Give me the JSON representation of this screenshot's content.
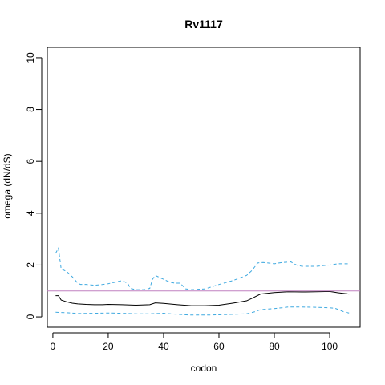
{
  "chart_data": {
    "type": "line",
    "title": "Rv1117",
    "xlabel": "codon",
    "ylabel": "omega (dN/dS)",
    "xlim": [
      -2,
      111
    ],
    "ylim": [
      -0.4,
      10.4
    ],
    "xticks": [
      0,
      20,
      40,
      60,
      80,
      100
    ],
    "yticks": [
      0,
      2,
      4,
      6,
      8,
      10
    ],
    "reference_line": {
      "y": 1,
      "color": "#c080c0"
    },
    "grid": false,
    "series": [
      {
        "style": "solid",
        "color": "#000000",
        "x": [
          1,
          2,
          3,
          5,
          7,
          9,
          12,
          15,
          18,
          20,
          25,
          30,
          35,
          37,
          40,
          45,
          50,
          55,
          60,
          65,
          70,
          72,
          75,
          80,
          85,
          90,
          95,
          100,
          103,
          107
        ],
        "values": [
          0.82,
          0.82,
          0.65,
          0.58,
          0.53,
          0.5,
          0.48,
          0.47,
          0.47,
          0.48,
          0.47,
          0.45,
          0.47,
          0.54,
          0.52,
          0.47,
          0.43,
          0.43,
          0.45,
          0.53,
          0.62,
          0.72,
          0.88,
          0.94,
          0.97,
          0.96,
          0.97,
          0.98,
          0.93,
          0.88
        ]
      },
      {
        "style": "dashed",
        "color": "#3fa9e0",
        "x": [
          1,
          2,
          3,
          5,
          7,
          9,
          10,
          12,
          15,
          18,
          20,
          23,
          25,
          27,
          28,
          30,
          33,
          35,
          36,
          37,
          38,
          40,
          42,
          44,
          46,
          48,
          50,
          55,
          60,
          65,
          70,
          72,
          74,
          76,
          80,
          83,
          86,
          88,
          90,
          95,
          100,
          103,
          107
        ],
        "values": [
          2.45,
          2.65,
          1.85,
          1.75,
          1.55,
          1.3,
          1.25,
          1.25,
          1.22,
          1.25,
          1.28,
          1.35,
          1.4,
          1.3,
          1.1,
          1.05,
          1.05,
          1.1,
          1.45,
          1.6,
          1.55,
          1.45,
          1.35,
          1.3,
          1.3,
          1.08,
          1.05,
          1.08,
          1.25,
          1.4,
          1.6,
          1.8,
          2.08,
          2.1,
          2.05,
          2.1,
          2.12,
          2.0,
          1.95,
          1.95,
          2.0,
          2.05,
          2.05
        ]
      },
      {
        "style": "dashed",
        "color": "#3fa9e0",
        "x": [
          1,
          3,
          5,
          8,
          10,
          15,
          20,
          25,
          30,
          35,
          40,
          45,
          50,
          55,
          60,
          65,
          70,
          73,
          75,
          80,
          85,
          90,
          95,
          100,
          102,
          105,
          107
        ],
        "values": [
          0.18,
          0.17,
          0.16,
          0.14,
          0.13,
          0.14,
          0.15,
          0.14,
          0.12,
          0.12,
          0.14,
          0.1,
          0.07,
          0.07,
          0.08,
          0.1,
          0.12,
          0.2,
          0.28,
          0.32,
          0.38,
          0.38,
          0.37,
          0.35,
          0.33,
          0.2,
          0.15
        ]
      }
    ]
  }
}
